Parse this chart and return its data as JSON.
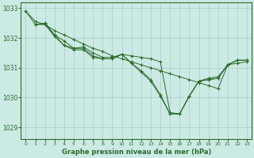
{
  "title": "Graphe pression niveau de la mer (hPa)",
  "background_color": "#cceae4",
  "grid_color": "#aaccc6",
  "line_color": "#2d6b2d",
  "xlim": [
    -0.5,
    23.5
  ],
  "ylim": [
    1028.6,
    1033.2
  ],
  "yticks": [
    1029,
    1030,
    1031,
    1032,
    1033
  ],
  "xticks": [
    0,
    1,
    2,
    3,
    4,
    5,
    6,
    7,
    8,
    9,
    10,
    11,
    12,
    13,
    14,
    15,
    16,
    17,
    18,
    19,
    20,
    21,
    22,
    23
  ],
  "series": [
    {
      "x": [
        0,
        1,
        2,
        3,
        4,
        5,
        6,
        7,
        8,
        9,
        10,
        11,
        12,
        13,
        14,
        15,
        16,
        17,
        18,
        19,
        20,
        21,
        22,
        23
      ],
      "y": [
        1032.9,
        1032.55,
        1032.45,
        1032.25,
        1032.1,
        1031.95,
        1031.8,
        1031.65,
        1031.55,
        1031.4,
        1031.3,
        1031.2,
        1031.1,
        1031.0,
        1030.9,
        1030.8,
        1030.7,
        1030.6,
        1030.5,
        1030.4,
        1030.3,
        1031.1,
        1031.15,
        1031.2
      ]
    },
    {
      "x": [
        0,
        1,
        2,
        3,
        4,
        5,
        6,
        7,
        8,
        9,
        10,
        11,
        12,
        13,
        14,
        15,
        16,
        17,
        18,
        19,
        20,
        21,
        22,
        23
      ],
      "y": [
        1032.9,
        1032.45,
        1032.45,
        1032.05,
        1031.75,
        1031.6,
        1031.6,
        1031.35,
        1031.3,
        1031.3,
        1031.45,
        1031.15,
        1030.9,
        1030.6,
        1030.1,
        1029.45,
        1029.45,
        1030.05,
        1030.55,
        1030.6,
        1030.65,
        1031.1,
        1031.25,
        1031.25
      ]
    },
    {
      "x": [
        1,
        2,
        3,
        4,
        5,
        6,
        7,
        8,
        9,
        10,
        11,
        12,
        13,
        14,
        15,
        16,
        17,
        18,
        19,
        20,
        21,
        22,
        23
      ],
      "y": [
        1032.45,
        1032.5,
        1032.1,
        1031.75,
        1031.65,
        1031.65,
        1031.4,
        1031.3,
        1031.3,
        1031.45,
        1031.15,
        1030.85,
        1030.55,
        1030.05,
        1029.45,
        1029.45,
        1030.05,
        1030.55,
        1030.6,
        1030.65,
        1031.1,
        1031.25,
        1031.25
      ]
    },
    {
      "x": [
        1,
        2,
        3,
        4,
        5,
        6,
        7,
        8,
        9,
        10,
        11,
        12,
        13,
        14,
        15,
        16,
        17,
        18,
        19,
        20,
        21,
        22,
        23
      ],
      "y": [
        1032.45,
        1032.5,
        1032.1,
        1031.9,
        1031.65,
        1031.7,
        1031.5,
        1031.35,
        1031.35,
        1031.45,
        1031.4,
        1031.35,
        1031.3,
        1031.2,
        1029.5,
        1029.45,
        1030.05,
        1030.55,
        1030.65,
        1030.7,
        1031.1,
        1031.25,
        1031.25
      ]
    }
  ]
}
